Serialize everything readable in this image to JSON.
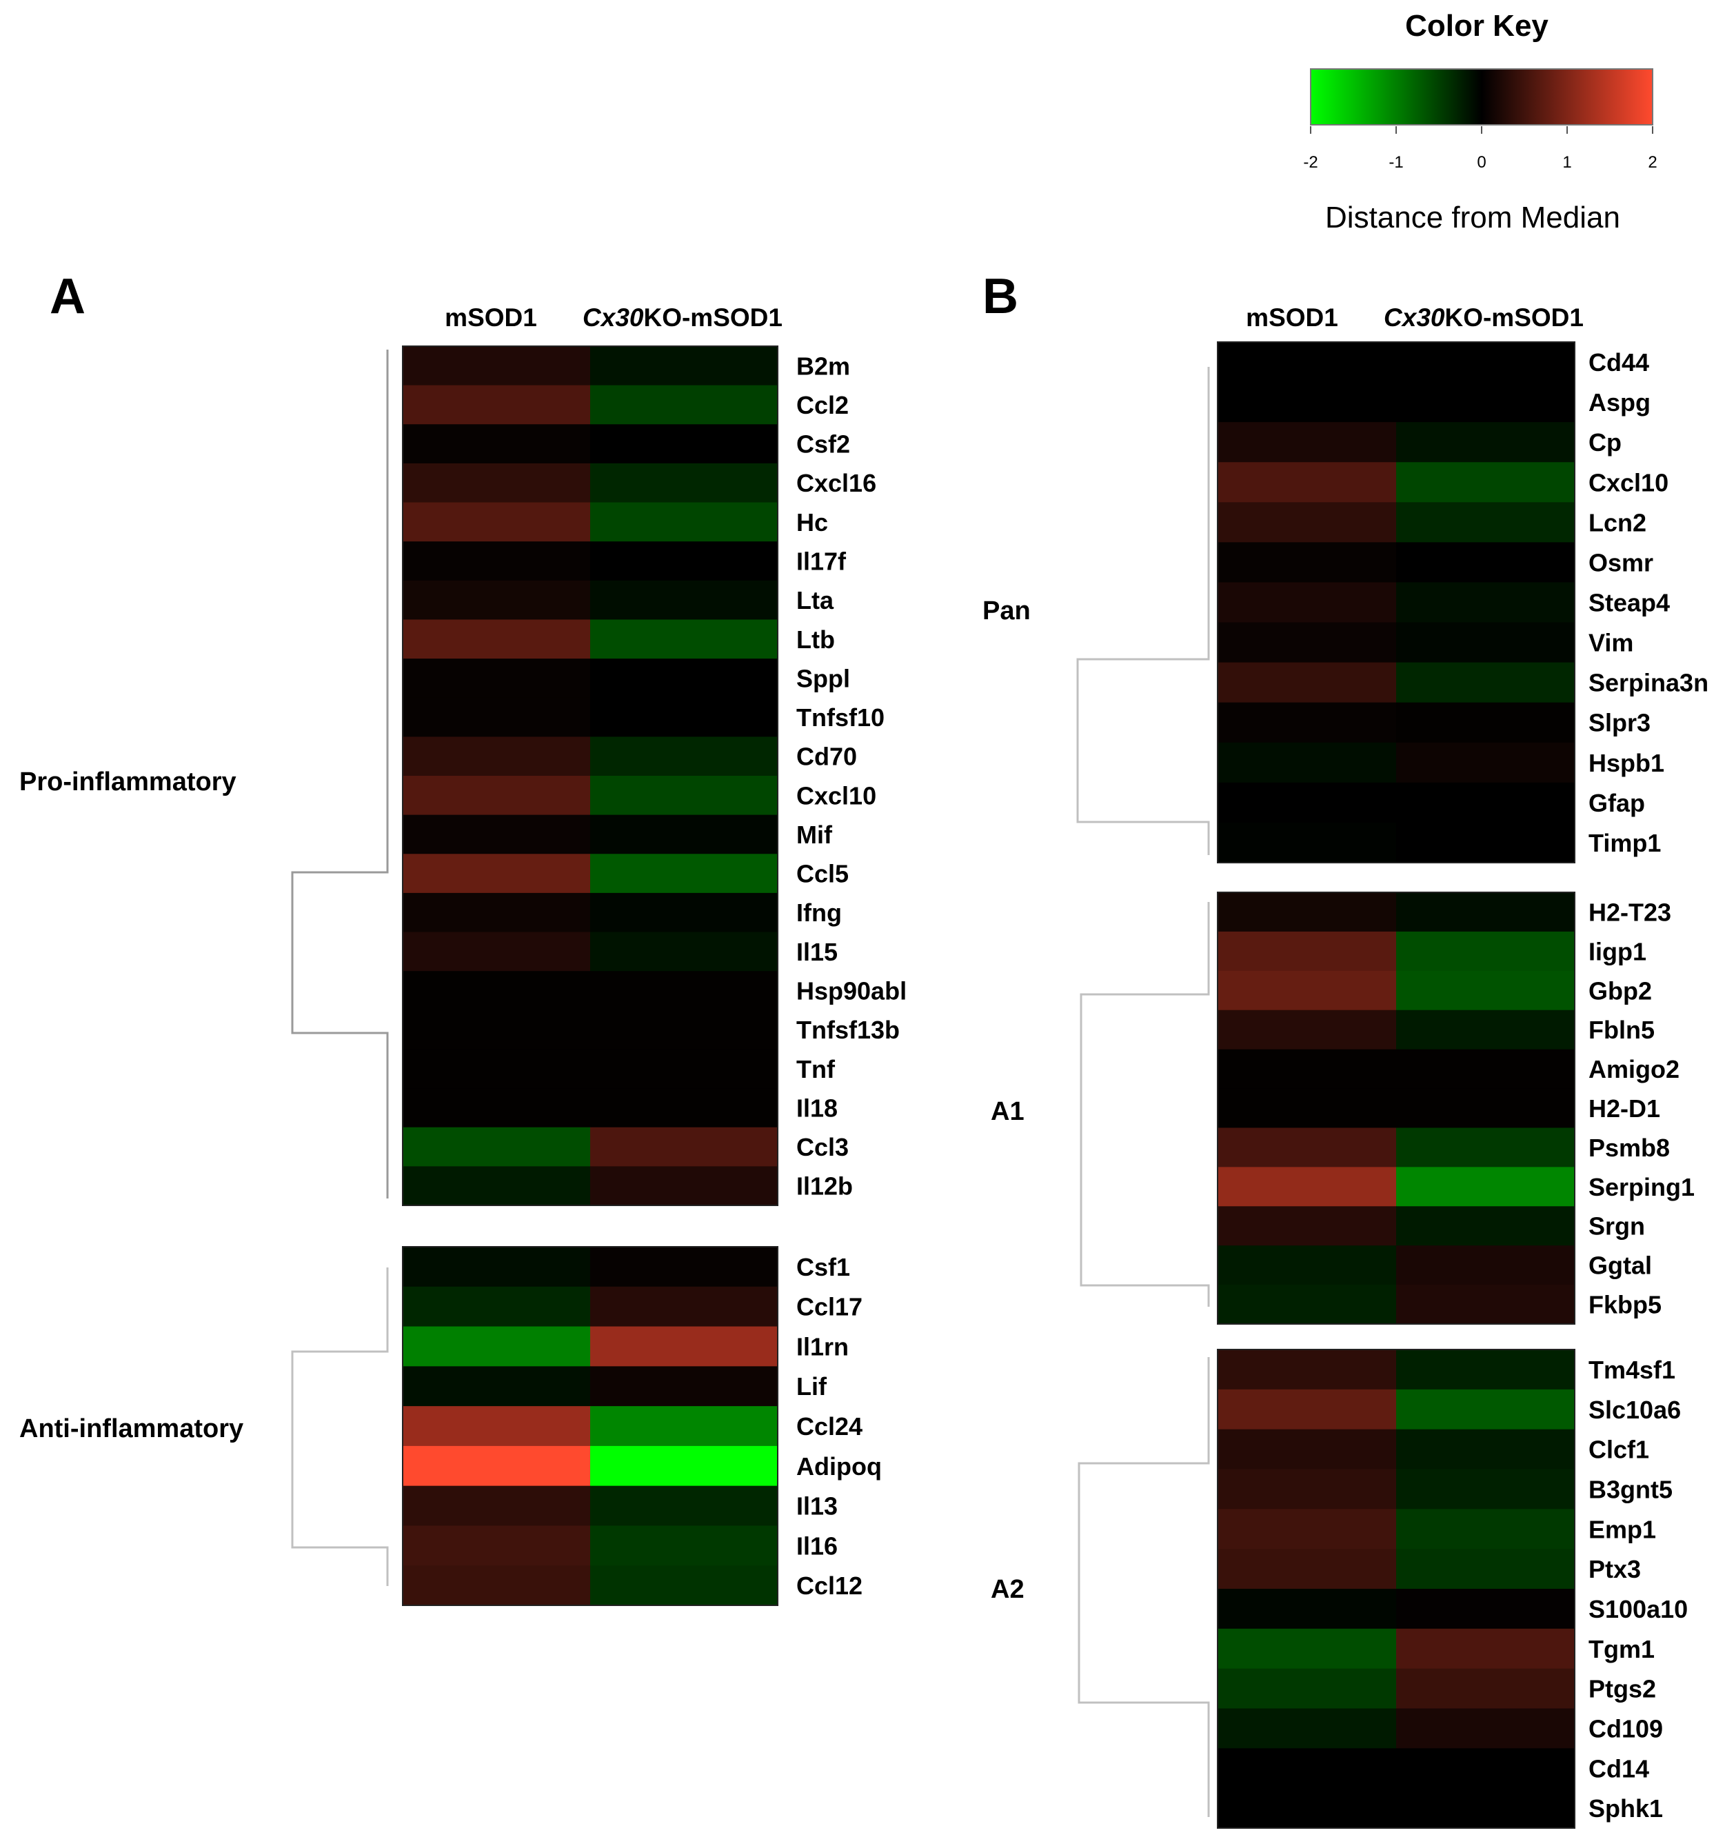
{
  "color_key": {
    "title": "Color Key",
    "ticks": [
      "-2",
      "-1",
      "0",
      "1",
      "2"
    ],
    "label": "Distance from Median",
    "low_color": "#00ff00",
    "mid_color": "#000000",
    "high_color": "#ff4a2e",
    "range": [
      -2,
      2
    ]
  },
  "chart_data": [
    {
      "type": "heatmap",
      "panel": "A",
      "columns": [
        "mSOD1",
        "Cx30KO-mSOD1"
      ],
      "column_parts": [
        {
          "italic": "",
          "plain": "mSOD1"
        },
        {
          "italic": "Cx30",
          "plain": "KO-mSOD1"
        }
      ],
      "groups": [
        {
          "name": "Pro-inflammatory",
          "rows": [
            "B2m",
            "Ccl2",
            "Csf2",
            "Cxcl16",
            "Hc",
            "Il17f",
            "Lta",
            "Ltb",
            "Sppl",
            "Tnfsf10",
            "Cd70",
            "Cxcl10",
            "Mif",
            "Ccl5",
            "Ifng",
            "Il15",
            "Hsp90abl",
            "Tnfsf13b",
            "Tnf",
            "Il18",
            "Ccl3",
            "Il12b"
          ],
          "values": [
            [
              0.25,
              -0.15
            ],
            [
              0.6,
              -0.5
            ],
            [
              0.05,
              0.0
            ],
            [
              0.35,
              -0.3
            ],
            [
              0.65,
              -0.55
            ],
            [
              0.05,
              0.0
            ],
            [
              0.15,
              -0.1
            ],
            [
              0.7,
              -0.6
            ],
            [
              0.05,
              0.0
            ],
            [
              0.05,
              0.0
            ],
            [
              0.35,
              -0.3
            ],
            [
              0.65,
              -0.55
            ],
            [
              0.08,
              -0.05
            ],
            [
              0.8,
              -0.7
            ],
            [
              0.1,
              -0.05
            ],
            [
              0.25,
              -0.15
            ],
            [
              0.02,
              0.02
            ],
            [
              0.02,
              0.02
            ],
            [
              0.02,
              0.02
            ],
            [
              0.02,
              0.02
            ],
            [
              -0.6,
              0.6
            ],
            [
              -0.2,
              0.25
            ]
          ]
        },
        {
          "name": "Anti-inflammatory",
          "rows": [
            "Csf1",
            "Ccl17",
            "Il1rn",
            "Lif",
            "Ccl24",
            "Adipoq",
            "Il13",
            "Il16",
            "Ccl12"
          ],
          "values": [
            [
              -0.1,
              0.05
            ],
            [
              -0.3,
              0.3
            ],
            [
              -1.0,
              1.2
            ],
            [
              -0.12,
              0.1
            ],
            [
              1.2,
              -1.05
            ],
            [
              2.0,
              -2.0
            ],
            [
              0.35,
              -0.3
            ],
            [
              0.5,
              -0.45
            ],
            [
              0.45,
              -0.4
            ]
          ]
        }
      ]
    },
    {
      "type": "heatmap",
      "panel": "B",
      "columns": [
        "mSOD1",
        "Cx30KO-mSOD1"
      ],
      "column_parts": [
        {
          "italic": "",
          "plain": "mSOD1"
        },
        {
          "italic": "Cx30",
          "plain": "KO-mSOD1"
        }
      ],
      "groups": [
        {
          "name": "Pan",
          "rows": [
            "Cd44",
            "Aspg",
            "Cp",
            "Cxcl10",
            "Lcn2",
            "Osmr",
            "Steap4",
            "Vim",
            "Serpina3n",
            "Slpr3",
            "Hspb1",
            "Gfap",
            "Timp1"
          ],
          "values": [
            [
              0.0,
              0.0
            ],
            [
              0.0,
              0.0
            ],
            [
              0.2,
              -0.15
            ],
            [
              0.6,
              -0.55
            ],
            [
              0.35,
              -0.3
            ],
            [
              0.05,
              0.0
            ],
            [
              0.2,
              -0.12
            ],
            [
              0.08,
              -0.05
            ],
            [
              0.4,
              -0.3
            ],
            [
              0.05,
              0.02
            ],
            [
              -0.1,
              0.1
            ],
            [
              0.0,
              0.0
            ],
            [
              -0.02,
              0.0
            ]
          ]
        },
        {
          "name": "A1",
          "rows": [
            "H2-T23",
            "Iigp1",
            "Gbp2",
            "Fbln5",
            "Amigo2",
            "H2-D1",
            "Psmb8",
            "Serping1",
            "Srgn",
            "Ggtal",
            "Fkbp5"
          ],
          "values": [
            [
              0.15,
              -0.1
            ],
            [
              0.7,
              -0.6
            ],
            [
              0.8,
              -0.65
            ],
            [
              0.3,
              -0.2
            ],
            [
              0.02,
              0.02
            ],
            [
              0.02,
              0.02
            ],
            [
              0.55,
              -0.45
            ],
            [
              1.15,
              -1.05
            ],
            [
              0.3,
              -0.2
            ],
            [
              -0.2,
              0.2
            ],
            [
              -0.25,
              0.25
            ]
          ]
        },
        {
          "name": "A2",
          "rows": [
            "Tm4sf1",
            "Slc10a6",
            "Clcf1",
            "B3gnt5",
            "Emp1",
            "Ptx3",
            "S100a10",
            "Tgm1",
            "Ptgs2",
            "Cd109",
            "Cd14",
            "Sphk1"
          ],
          "values": [
            [
              0.35,
              -0.25
            ],
            [
              0.75,
              -0.7
            ],
            [
              0.28,
              -0.2
            ],
            [
              0.35,
              -0.25
            ],
            [
              0.5,
              -0.45
            ],
            [
              0.45,
              -0.4
            ],
            [
              -0.05,
              0.03
            ],
            [
              -0.6,
              0.6
            ],
            [
              -0.45,
              0.45
            ],
            [
              -0.2,
              0.2
            ],
            [
              0.0,
              0.0
            ],
            [
              0.0,
              0.0
            ]
          ]
        }
      ]
    }
  ]
}
